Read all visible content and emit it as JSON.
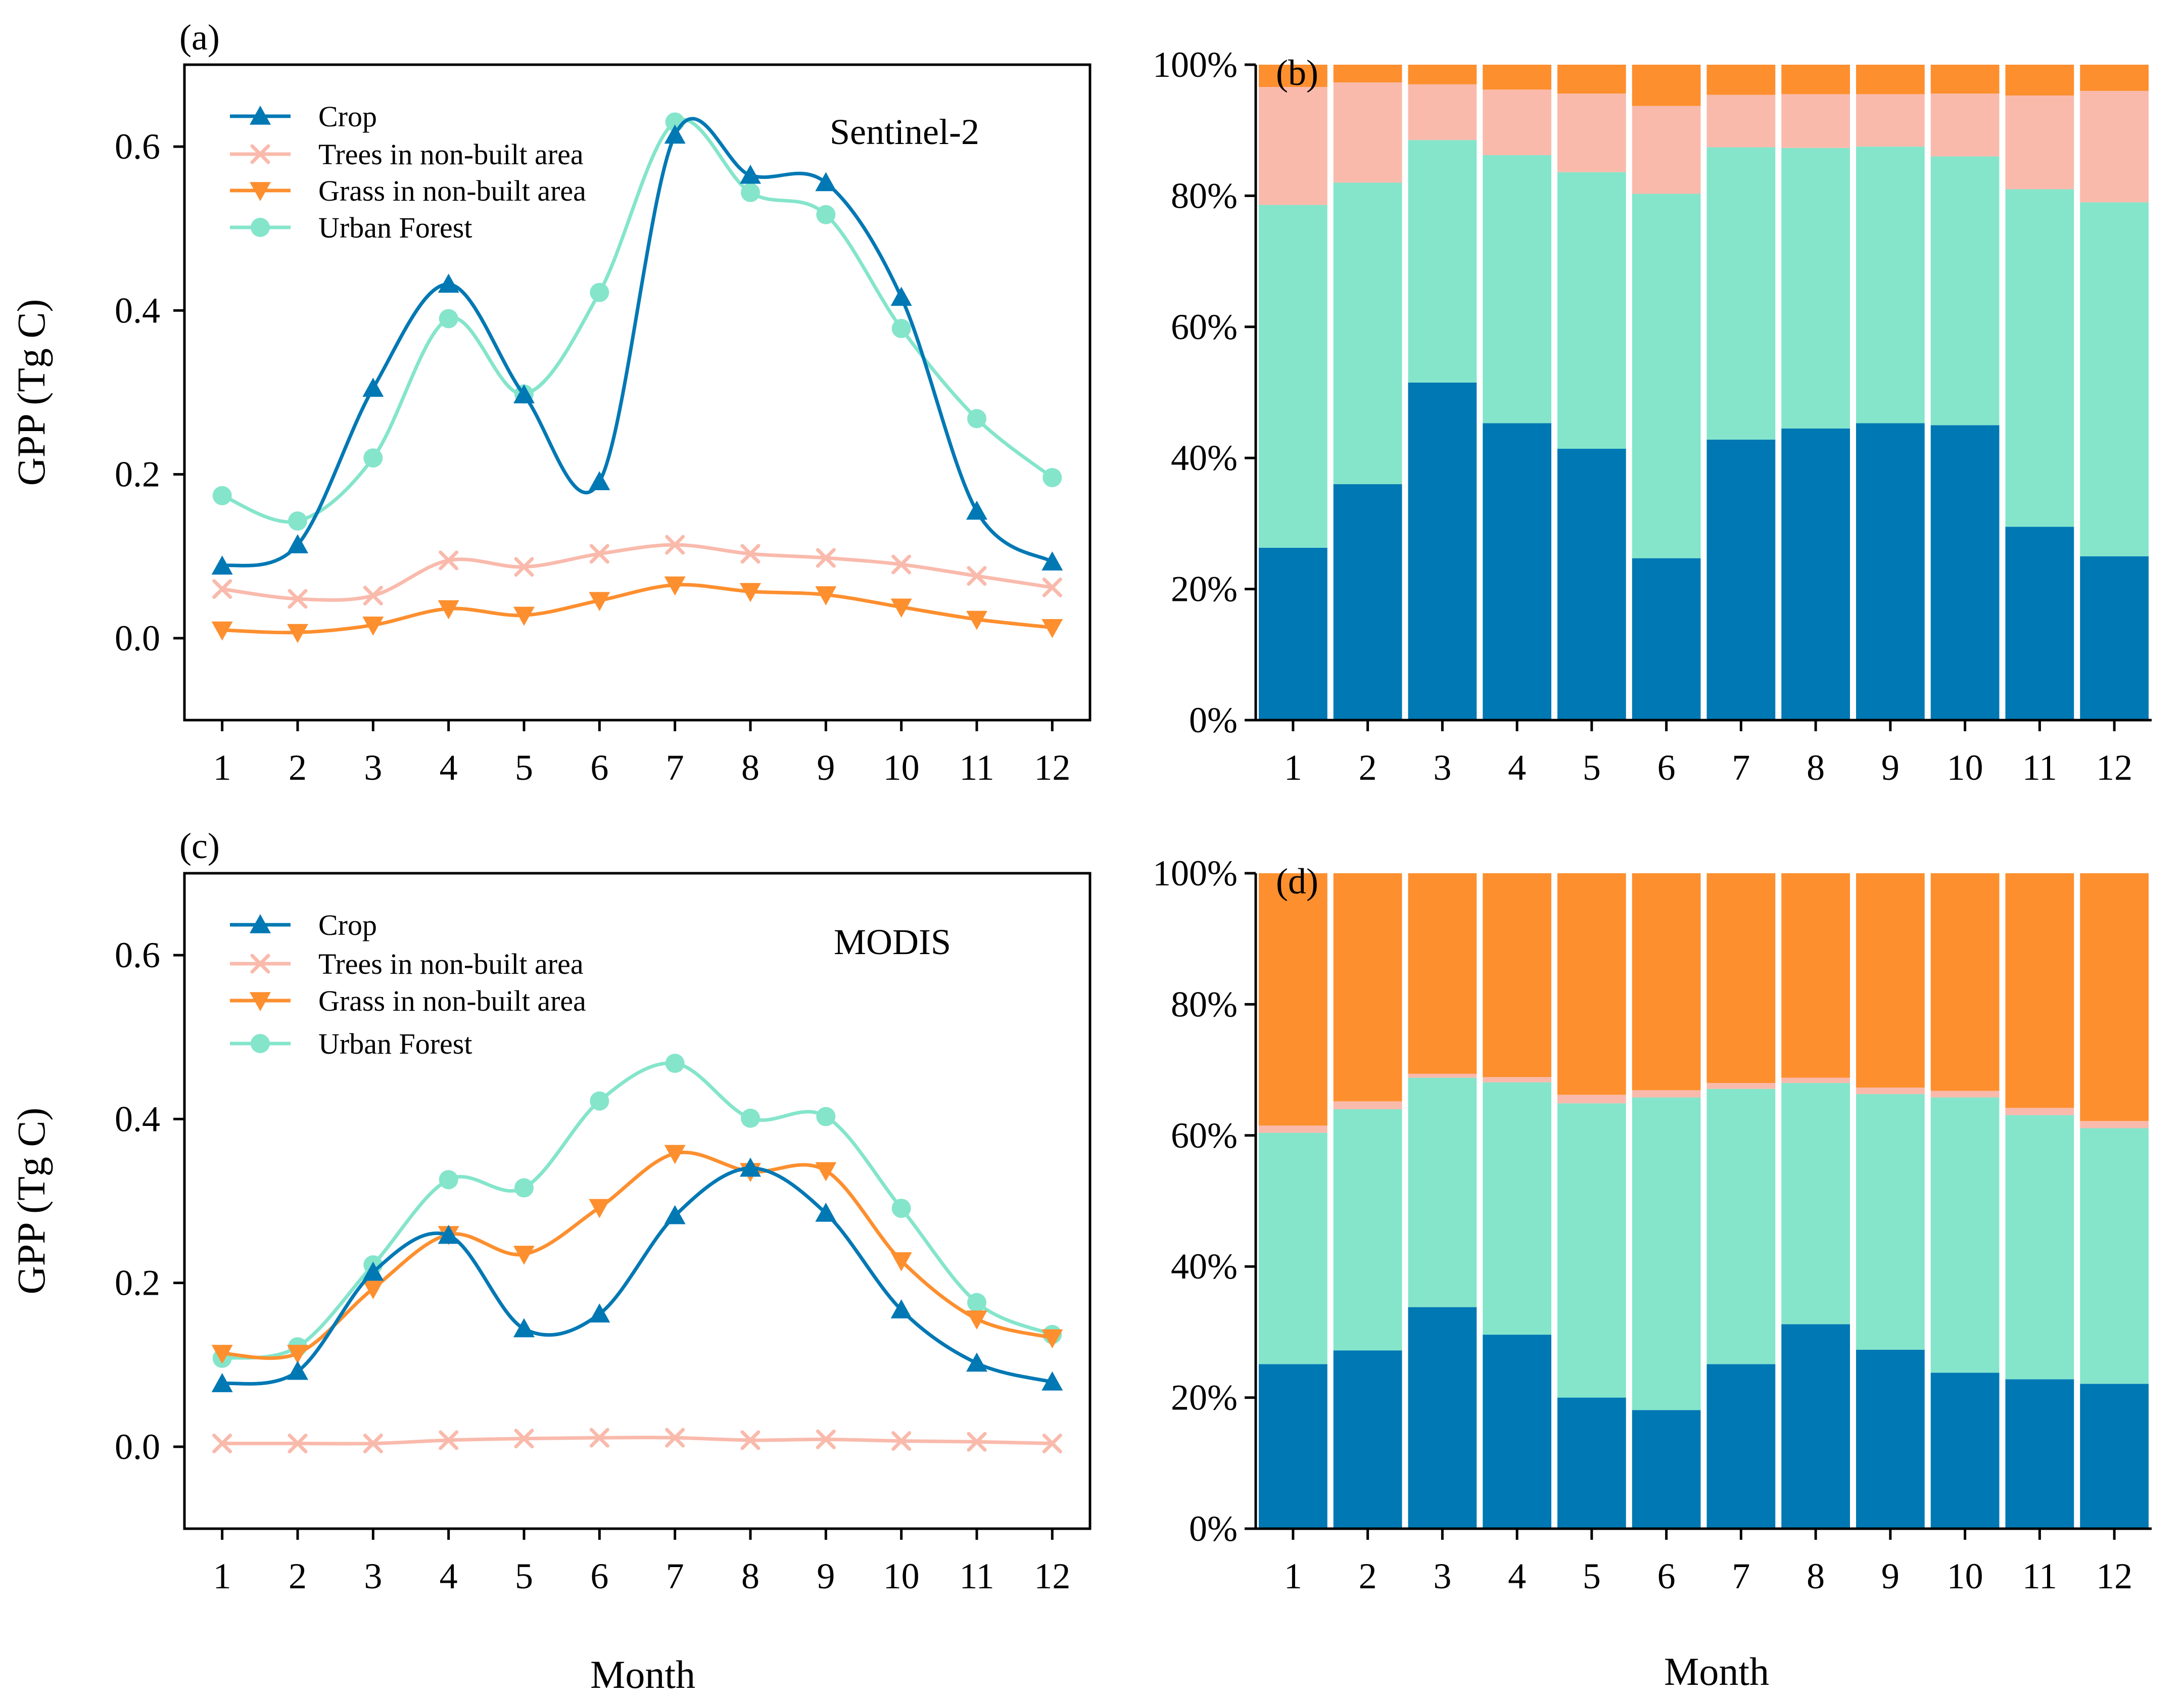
{
  "colors": {
    "crop": "#0078B4",
    "trees": "#F9BAAC",
    "grass": "#FD8F2F",
    "urban": "#84E5CB"
  },
  "shared": {
    "xlabel": "Month",
    "ylabel": "GPP (Tg C)"
  },
  "chart_data": [
    {
      "panel": "(a)",
      "type": "line",
      "source_label": "Sentinel-2",
      "ylabel": "GPP (Tg C)",
      "xlabel": "Month",
      "x": [
        1,
        2,
        3,
        4,
        5,
        6,
        7,
        8,
        9,
        10,
        11,
        12
      ],
      "ylim": [
        -0.1,
        0.7
      ],
      "yticks": [
        "0.0",
        "0.2",
        "0.4",
        "0.6"
      ],
      "ytick_values": [
        0.0,
        0.2,
        0.4,
        0.6
      ],
      "legend_position": "top-left",
      "series": [
        {
          "name": "Crop",
          "color_key": "crop",
          "marker": "triangle-up",
          "values": [
            0.088,
            0.114,
            0.305,
            0.432,
            0.297,
            0.191,
            0.614,
            0.565,
            0.556,
            0.416,
            0.155,
            0.093
          ]
        },
        {
          "name": "Trees in non-built area",
          "color_key": "trees",
          "marker": "x",
          "values": [
            0.06,
            0.048,
            0.052,
            0.095,
            0.087,
            0.103,
            0.114,
            0.103,
            0.098,
            0.09,
            0.076,
            0.062
          ]
        },
        {
          "name": "Grass in non-built area",
          "color_key": "grass",
          "marker": "triangle-down",
          "values": [
            0.01,
            0.007,
            0.016,
            0.036,
            0.028,
            0.046,
            0.065,
            0.057,
            0.053,
            0.038,
            0.023,
            0.013
          ]
        },
        {
          "name": "Urban Forest",
          "color_key": "urban",
          "marker": "circle",
          "values": [
            0.174,
            0.143,
            0.22,
            0.39,
            0.298,
            0.422,
            0.63,
            0.544,
            0.517,
            0.378,
            0.268,
            0.196
          ]
        }
      ]
    },
    {
      "panel": "(b)",
      "type": "bar",
      "stacked": true,
      "percent": true,
      "xlabel": "Month",
      "categories": [
        "1",
        "2",
        "3",
        "4",
        "5",
        "6",
        "7",
        "8",
        "9",
        "10",
        "11",
        "12"
      ],
      "ylim": [
        0,
        100
      ],
      "yticks": [
        "0%",
        "20%",
        "40%",
        "60%",
        "80%",
        "100%"
      ],
      "series": [
        {
          "name": "Crop",
          "color_key": "crop",
          "values": [
            26.3,
            36.0,
            51.5,
            45.3,
            41.4,
            24.7,
            42.8,
            44.5,
            45.3,
            45.0,
            29.5,
            25.0
          ]
        },
        {
          "name": "Urban Forest",
          "color_key": "urban",
          "values": [
            52.3,
            46.0,
            37.0,
            40.9,
            42.2,
            55.6,
            44.6,
            42.8,
            42.2,
            41.0,
            51.5,
            54.0
          ]
        },
        {
          "name": "Trees in non-built area",
          "color_key": "trees",
          "values": [
            18.0,
            15.3,
            8.5,
            10.0,
            12.0,
            13.4,
            8.0,
            8.2,
            8.0,
            9.6,
            14.3,
            17.0
          ]
        },
        {
          "name": "Grass in non-built area",
          "color_key": "grass",
          "values": [
            3.4,
            2.7,
            3.0,
            3.8,
            4.4,
            6.3,
            4.6,
            4.5,
            4.5,
            4.4,
            4.7,
            4.0
          ]
        }
      ]
    },
    {
      "panel": "(c)",
      "type": "line",
      "source_label": "MODIS",
      "ylabel": "GPP (Tg C)",
      "xlabel": "Month",
      "x": [
        1,
        2,
        3,
        4,
        5,
        6,
        7,
        8,
        9,
        10,
        11,
        12
      ],
      "ylim": [
        -0.1,
        0.7
      ],
      "yticks": [
        "0.0",
        "0.2",
        "0.4",
        "0.6"
      ],
      "ytick_values": [
        0.0,
        0.2,
        0.4,
        0.6
      ],
      "legend_position": "top-left",
      "series": [
        {
          "name": "Crop",
          "color_key": "crop",
          "marker": "triangle-up",
          "values": [
            0.077,
            0.092,
            0.213,
            0.258,
            0.144,
            0.162,
            0.282,
            0.34,
            0.285,
            0.167,
            0.102,
            0.079
          ]
        },
        {
          "name": "Trees in non-built area",
          "color_key": "trees",
          "marker": "x",
          "values": [
            0.004,
            0.004,
            0.004,
            0.008,
            0.01,
            0.011,
            0.011,
            0.008,
            0.009,
            0.007,
            0.006,
            0.004
          ]
        },
        {
          "name": "Grass in non-built area",
          "color_key": "grass",
          "marker": "triangle-down",
          "values": [
            0.114,
            0.114,
            0.193,
            0.259,
            0.235,
            0.292,
            0.358,
            0.336,
            0.337,
            0.227,
            0.156,
            0.133
          ]
        },
        {
          "name": "Urban Forest",
          "color_key": "urban",
          "marker": "circle",
          "values": [
            0.108,
            0.122,
            0.222,
            0.326,
            0.316,
            0.422,
            0.468,
            0.401,
            0.403,
            0.291,
            0.176,
            0.137
          ]
        }
      ]
    },
    {
      "panel": "(d)",
      "type": "bar",
      "stacked": true,
      "percent": true,
      "xlabel": "Month",
      "categories": [
        "1",
        "2",
        "3",
        "4",
        "5",
        "6",
        "7",
        "8",
        "9",
        "10",
        "11",
        "12"
      ],
      "ylim": [
        0,
        100
      ],
      "yticks": [
        "0%",
        "20%",
        "40%",
        "60%",
        "80%",
        "100%"
      ],
      "series": [
        {
          "name": "Crop",
          "color_key": "crop",
          "values": [
            25.1,
            27.2,
            33.8,
            29.6,
            20.0,
            18.1,
            25.1,
            31.2,
            27.3,
            23.8,
            22.8,
            22.1
          ]
        },
        {
          "name": "Urban Forest",
          "color_key": "urban",
          "values": [
            35.3,
            36.8,
            35.0,
            38.5,
            44.9,
            47.7,
            42.0,
            36.8,
            39.0,
            42.0,
            40.3,
            39.0
          ]
        },
        {
          "name": "Trees in non-built area",
          "color_key": "trees",
          "values": [
            1.1,
            1.2,
            0.6,
            0.8,
            1.3,
            1.1,
            0.9,
            0.8,
            1.0,
            1.0,
            1.1,
            1.1
          ]
        },
        {
          "name": "Grass in non-built area",
          "color_key": "grass",
          "values": [
            38.5,
            34.8,
            30.6,
            31.1,
            33.8,
            33.1,
            32.0,
            31.2,
            32.7,
            33.2,
            35.8,
            37.8
          ]
        }
      ]
    }
  ]
}
